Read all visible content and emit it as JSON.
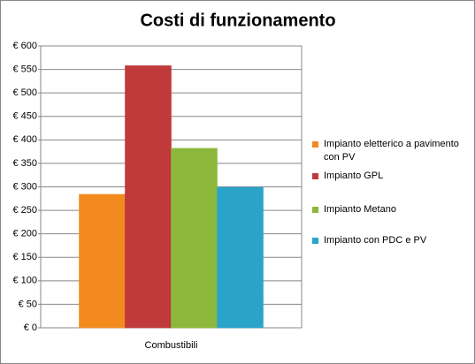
{
  "chart_data": {
    "type": "bar",
    "title": "Costi di funzionamento",
    "categories": [
      "Combustibili"
    ],
    "series": [
      {
        "name": "Impianto eletterico a pavimento con PV",
        "color": "#f28a1e",
        "values": [
          284
        ]
      },
      {
        "name": "Impianto GPL",
        "color": "#c0393b",
        "values": [
          558
        ]
      },
      {
        "name": "Impianto Metano",
        "color": "#8cb83c",
        "values": [
          382
        ]
      },
      {
        "name": "Impianto con PDC e PV",
        "color": "#2aa3c9",
        "values": [
          299
        ]
      }
    ],
    "ylim": [
      0,
      600
    ],
    "yticks": [
      {
        "value": 0,
        "label": "€ 0"
      },
      {
        "value": 50,
        "label": "€ 50"
      },
      {
        "value": 100,
        "label": "€ 100"
      },
      {
        "value": 150,
        "label": "€ 150"
      },
      {
        "value": 200,
        "label": "€ 200"
      },
      {
        "value": 250,
        "label": "€ 250"
      },
      {
        "value": 300,
        "label": "€ 300"
      },
      {
        "value": 350,
        "label": "€ 350"
      },
      {
        "value": 400,
        "label": "€ 400"
      },
      {
        "value": 450,
        "label": "€ 450"
      },
      {
        "value": 500,
        "label": "€ 500"
      },
      {
        "value": 550,
        "label": "€ 550"
      },
      {
        "value": 600,
        "label": "€ 600"
      }
    ],
    "grid": true,
    "legend": "right"
  }
}
